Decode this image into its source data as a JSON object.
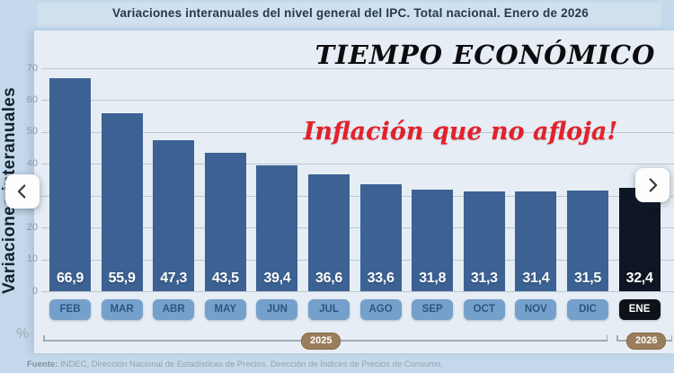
{
  "page": {
    "title": "Variaciones interanuales del nivel general del IPC. Total nacional. Enero de 2026"
  },
  "branding": {
    "masthead": "TIEMPO ECONÓMICO",
    "headline": "Inflación que no afloja!"
  },
  "carousel": {
    "prev_icon": "chevron-left-icon",
    "next_icon": "chevron-right-icon"
  },
  "chart_data": {
    "type": "bar",
    "title": "Variaciones interanuales del nivel general del IPC. Total nacional. Enero de 2026",
    "ylabel": "Variaciones interanuales",
    "xlabel": "",
    "unit_label": "%",
    "ylim": [
      0,
      70
    ],
    "yticks": [
      0,
      10,
      20,
      30,
      40,
      50,
      60,
      70
    ],
    "grid": true,
    "legend": false,
    "categories": [
      "FEB",
      "MAR",
      "ABR",
      "MAY",
      "JUN",
      "JUL",
      "AGO",
      "SEP",
      "OCT",
      "NOV",
      "DIC",
      "ENE"
    ],
    "values": [
      66.9,
      55.9,
      47.3,
      43.5,
      39.4,
      36.6,
      33.6,
      31.8,
      31.3,
      31.4,
      31.5,
      32.4
    ],
    "value_labels": [
      "66,9",
      "55,9",
      "47,3",
      "43,5",
      "39,4",
      "36,6",
      "33,6",
      "31,8",
      "31,3",
      "31,4",
      "31,5",
      "32,4"
    ],
    "highlight_index": 11,
    "year_groups": [
      {
        "label": "2025",
        "from": "FEB",
        "to": "DIC"
      },
      {
        "label": "2026",
        "from": "ENE",
        "to": "ENE"
      }
    ]
  },
  "colors": {
    "bar": "#3c6293",
    "highlight_bar": "#0e1623",
    "month_pill": "#76a0cc",
    "month_pill_text": "#2b5484",
    "highlight_pill": "#0d1118",
    "accent_red": "#e3212b",
    "year_pill": "#9a7e5c",
    "panel_bg": "#e6edf4",
    "outer_bg": "#c4d9eb"
  },
  "footer": {
    "source_label": "Fuente:",
    "source_text": "INDEC, Dirección Nacional de Estadísticas de Precios. Dirección de Índices de Precios de Consumo."
  }
}
